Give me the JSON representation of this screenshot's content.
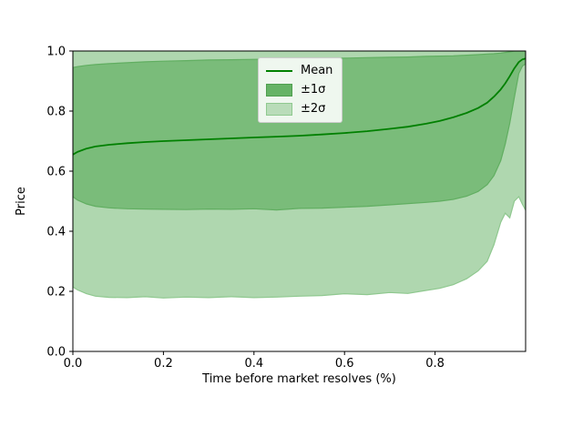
{
  "chart_data": {
    "type": "area",
    "title": "",
    "xlabel": "Time before market resolves (%)",
    "ylabel": "Price",
    "xlim": [
      0.0,
      1.0
    ],
    "ylim": [
      0.0,
      1.0
    ],
    "grid": false,
    "legend_position": "upper center",
    "x_ticks": [
      {
        "value": 0.0,
        "label": "0.0"
      },
      {
        "value": 0.2,
        "label": "0.2"
      },
      {
        "value": 0.4,
        "label": "0.4"
      },
      {
        "value": 0.6,
        "label": "0.6"
      },
      {
        "value": 0.8,
        "label": "0.8"
      }
    ],
    "y_ticks": [
      {
        "value": 0.0,
        "label": "0.0"
      },
      {
        "value": 0.2,
        "label": "0.2"
      },
      {
        "value": 0.4,
        "label": "0.4"
      },
      {
        "value": 0.6,
        "label": "0.6"
      },
      {
        "value": 0.8,
        "label": "0.8"
      },
      {
        "value": 1.0,
        "label": "1.0"
      }
    ],
    "x": [
      0.0,
      0.01,
      0.03,
      0.05,
      0.08,
      0.12,
      0.16,
      0.2,
      0.25,
      0.3,
      0.35,
      0.4,
      0.45,
      0.5,
      0.55,
      0.6,
      0.65,
      0.7,
      0.74,
      0.78,
      0.81,
      0.84,
      0.87,
      0.895,
      0.915,
      0.93,
      0.945,
      0.955,
      0.965,
      0.975,
      0.985,
      0.993,
      1.0
    ],
    "series": [
      {
        "name": "Mean",
        "type": "line",
        "color": "#008000",
        "values": [
          0.655,
          0.664,
          0.675,
          0.682,
          0.688,
          0.693,
          0.697,
          0.7,
          0.703,
          0.706,
          0.709,
          0.712,
          0.715,
          0.718,
          0.722,
          0.727,
          0.733,
          0.741,
          0.748,
          0.758,
          0.767,
          0.779,
          0.794,
          0.81,
          0.828,
          0.848,
          0.872,
          0.892,
          0.916,
          0.942,
          0.963,
          0.972,
          0.975
        ]
      },
      {
        "name": "±1σ",
        "type": "band",
        "fill": "#7abc7a",
        "edge": "#61ae61",
        "lower": [
          0.515,
          0.504,
          0.491,
          0.483,
          0.478,
          0.475,
          0.474,
          0.473,
          0.472,
          0.474,
          0.473,
          0.475,
          0.471,
          0.476,
          0.477,
          0.48,
          0.483,
          0.488,
          0.492,
          0.496,
          0.5,
          0.506,
          0.517,
          0.532,
          0.555,
          0.585,
          0.635,
          0.69,
          0.76,
          0.845,
          0.925,
          0.95,
          0.957
        ],
        "upper": [
          0.945,
          0.948,
          0.952,
          0.955,
          0.958,
          0.961,
          0.964,
          0.966,
          0.968,
          0.97,
          0.971,
          0.972,
          0.973,
          0.974,
          0.975,
          0.976,
          0.978,
          0.979,
          0.98,
          0.982,
          0.983,
          0.984,
          0.986,
          0.988,
          0.99,
          0.991,
          0.993,
          0.995,
          0.997,
          1.0,
          1.0,
          1.0,
          1.0
        ]
      },
      {
        "name": "±2σ",
        "type": "band",
        "fill": "#afd7af",
        "edge": "#8fc88f",
        "lower": [
          0.215,
          0.205,
          0.192,
          0.184,
          0.18,
          0.179,
          0.182,
          0.178,
          0.181,
          0.179,
          0.182,
          0.179,
          0.181,
          0.184,
          0.186,
          0.192,
          0.189,
          0.196,
          0.193,
          0.203,
          0.21,
          0.222,
          0.242,
          0.268,
          0.3,
          0.355,
          0.43,
          0.46,
          0.445,
          0.5,
          0.515,
          0.49,
          0.47
        ],
        "upper": [
          1.02,
          1.02,
          1.02,
          1.02,
          1.02,
          1.02,
          1.02,
          1.02,
          1.02,
          1.02,
          1.02,
          1.02,
          1.02,
          1.02,
          1.02,
          1.02,
          1.02,
          1.02,
          1.02,
          1.02,
          1.02,
          1.02,
          1.02,
          1.02,
          1.02,
          1.02,
          1.02,
          1.02,
          1.02,
          1.02,
          1.02,
          1.02,
          1.02
        ]
      }
    ],
    "colors": {
      "mean_line": "#008000",
      "band_1sigma": "#7abc7a",
      "band_2sigma": "#afd7af",
      "axes": "#000000",
      "tick_text": "#000000",
      "legend_border": "#cccccc",
      "background": "#ffffff"
    }
  },
  "legend": {
    "mean_label": "Mean",
    "band1_label": "±1σ",
    "band2_label": "±2σ"
  }
}
